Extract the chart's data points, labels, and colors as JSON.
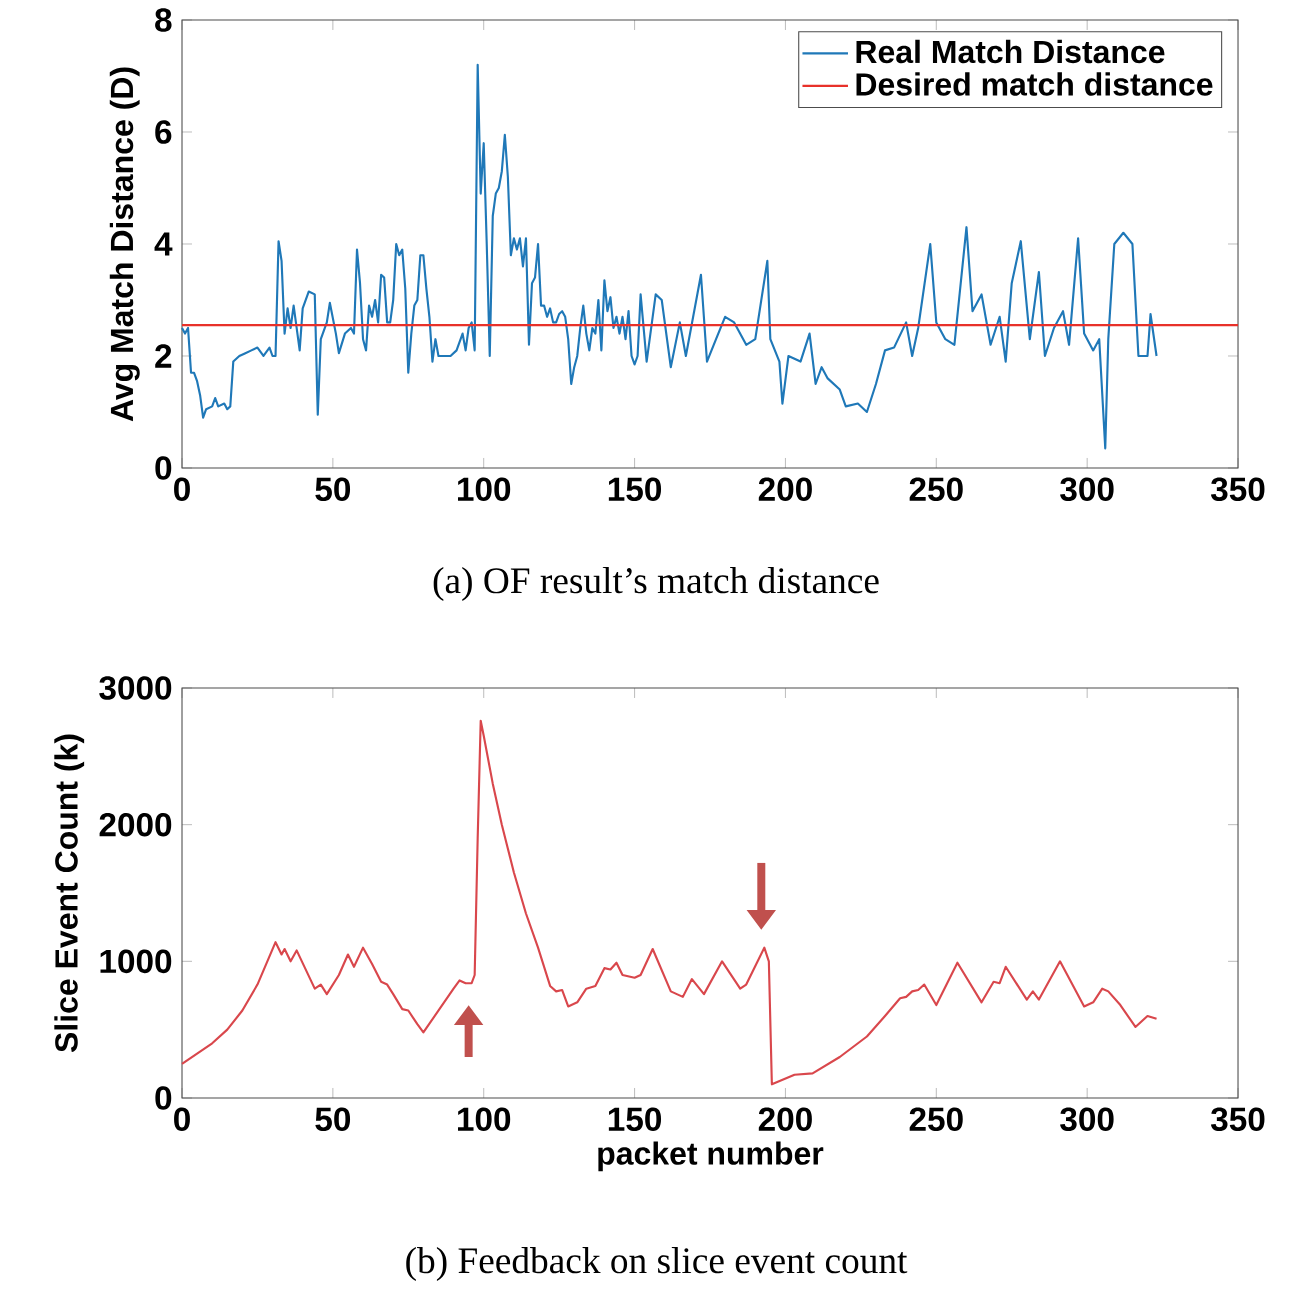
{
  "chart_data": [
    {
      "type": "line",
      "ylabel": "Avg Match Distance (D)",
      "xlim": [
        0,
        350
      ],
      "xticks": [
        0,
        50,
        100,
        150,
        200,
        250,
        300,
        350
      ],
      "ylim": [
        0,
        8
      ],
      "yticks": [
        0,
        2,
        4,
        6,
        8
      ],
      "legend": "top right",
      "annotations": [
        "(a) OF result’s match distance"
      ],
      "series": [
        {
          "name": "Real Match Distance",
          "color": "#1f78b8",
          "x": [
            0,
            1,
            2,
            3,
            4,
            5,
            6,
            7,
            8,
            10,
            11,
            12,
            14,
            15,
            16,
            17,
            19,
            21,
            23,
            25,
            27,
            29,
            30,
            31,
            32,
            33,
            34,
            35,
            36,
            37,
            39,
            40,
            42,
            44,
            45,
            46,
            48,
            49,
            51,
            52,
            54,
            56,
            57,
            58,
            59,
            60,
            61,
            62,
            63,
            64,
            65,
            66,
            67,
            68,
            69,
            70,
            71,
            72,
            73,
            74,
            75,
            76,
            77,
            78,
            79,
            80,
            81,
            82,
            83,
            84,
            85,
            87,
            89,
            91,
            93,
            94,
            95,
            96,
            97,
            98,
            99,
            100,
            101,
            102,
            103,
            104,
            105,
            106,
            107,
            108,
            109,
            110,
            111,
            112,
            113,
            114,
            115,
            116,
            117,
            118,
            119,
            120,
            121,
            122,
            123,
            124,
            125,
            126,
            127,
            128,
            129,
            130,
            131,
            132,
            133,
            134,
            135,
            136,
            137,
            138,
            139,
            140,
            141,
            142,
            143,
            144,
            145,
            146,
            147,
            148,
            149,
            150,
            151,
            152,
            154,
            157,
            159,
            162,
            165,
            167,
            172,
            174,
            177,
            180,
            183,
            187,
            190,
            194,
            195,
            198,
            199,
            201,
            205,
            208,
            210,
            212,
            214,
            218,
            220,
            224,
            227,
            230,
            233,
            236,
            240,
            242,
            244,
            248,
            250,
            253,
            256,
            260,
            262,
            265,
            268,
            271,
            273,
            275,
            278,
            281,
            284,
            286,
            289,
            292,
            294,
            297,
            299,
            302,
            304,
            306,
            307,
            309,
            312,
            315,
            317,
            320,
            321,
            323
          ],
          "values": [
            2.5,
            2.4,
            2.5,
            1.7,
            1.7,
            1.55,
            1.3,
            0.9,
            1.05,
            1.1,
            1.25,
            1.1,
            1.15,
            1.05,
            1.1,
            1.9,
            2.0,
            2.05,
            2.1,
            2.15,
            2.0,
            2.15,
            2.0,
            2.0,
            4.05,
            3.7,
            2.4,
            2.85,
            2.5,
            2.9,
            2.1,
            2.85,
            3.15,
            3.1,
            0.95,
            2.3,
            2.6,
            2.95,
            2.4,
            2.05,
            2.4,
            2.5,
            2.4,
            3.9,
            3.3,
            2.3,
            2.1,
            2.9,
            2.7,
            3.0,
            2.6,
            3.45,
            3.4,
            2.6,
            2.6,
            3.0,
            4.0,
            3.8,
            3.9,
            3.2,
            1.7,
            2.4,
            2.9,
            3.0,
            3.8,
            3.8,
            3.2,
            2.7,
            1.9,
            2.3,
            2.0,
            2.0,
            2.0,
            2.1,
            2.4,
            2.1,
            2.5,
            2.6,
            2.1,
            7.2,
            4.9,
            5.8,
            4.0,
            2.0,
            4.5,
            4.9,
            5.0,
            5.3,
            5.95,
            5.2,
            3.8,
            4.1,
            3.9,
            4.1,
            3.6,
            4.1,
            2.2,
            3.3,
            3.4,
            4.0,
            2.9,
            2.9,
            2.7,
            2.85,
            2.6,
            2.6,
            2.75,
            2.8,
            2.7,
            2.3,
            1.5,
            1.8,
            2.0,
            2.5,
            2.9,
            2.4,
            2.1,
            2.5,
            2.4,
            3.0,
            2.1,
            3.35,
            2.8,
            3.05,
            2.5,
            2.7,
            2.4,
            2.7,
            2.3,
            2.8,
            2.0,
            1.85,
            2.0,
            3.1,
            1.9,
            3.1,
            3.0,
            1.8,
            2.6,
            2.0,
            3.45,
            1.9,
            2.3,
            2.7,
            2.6,
            2.2,
            2.3,
            3.7,
            2.3,
            1.9,
            1.15,
            2.0,
            1.9,
            2.4,
            1.5,
            1.8,
            1.6,
            1.4,
            1.1,
            1.15,
            1.0,
            1.5,
            2.1,
            2.15,
            2.6,
            2.0,
            2.5,
            4.0,
            2.6,
            2.3,
            2.2,
            4.3,
            2.8,
            3.1,
            2.2,
            2.7,
            1.9,
            3.3,
            4.05,
            2.3,
            3.5,
            2.0,
            2.5,
            2.8,
            2.2,
            4.1,
            2.4,
            2.1,
            2.3,
            0.35,
            2.3,
            4.0,
            4.2,
            4.0,
            2.0,
            2.0,
            2.75,
            2.0
          ]
        },
        {
          "name": "Desired match distance",
          "color": "#e8312a",
          "x": [
            0,
            350
          ],
          "values": [
            2.55,
            2.55
          ]
        }
      ]
    },
    {
      "type": "line",
      "xlabel": "packet number",
      "ylabel": "Slice Event Count (k)",
      "xlim": [
        0,
        350
      ],
      "xticks": [
        0,
        50,
        100,
        150,
        200,
        250,
        300,
        350
      ],
      "ylim": [
        0,
        3000
      ],
      "yticks": [
        0,
        1000,
        2000,
        3000
      ],
      "annotations": [
        "(b) Feedback on slice event count"
      ],
      "series": [
        {
          "color": "#d9474c",
          "x": [
            0,
            10,
            15,
            20,
            25,
            31,
            33,
            34,
            36,
            38,
            41,
            44,
            46,
            48,
            52,
            55,
            57,
            60,
            63,
            66,
            68,
            70,
            73,
            75,
            78,
            80,
            85,
            90,
            92,
            94,
            96,
            97,
            98,
            99,
            100,
            103,
            106,
            110,
            114,
            118,
            122,
            124,
            126,
            128,
            131,
            134,
            137,
            140,
            142,
            144,
            146,
            150,
            152,
            156,
            162,
            166,
            169,
            173,
            179,
            185,
            187,
            193,
            194.5,
            195.5,
            203,
            209,
            218,
            227,
            233,
            238,
            240,
            242,
            244,
            246,
            250,
            257,
            265,
            269,
            271,
            273,
            280,
            282,
            284,
            291,
            299,
            302,
            305,
            307,
            311,
            316,
            320,
            323
          ],
          "values": [
            250,
            400,
            500,
            640,
            830,
            1140,
            1050,
            1090,
            1000,
            1080,
            940,
            800,
            830,
            760,
            900,
            1050,
            960,
            1100,
            980,
            850,
            830,
            760,
            650,
            640,
            540,
            480,
            640,
            800,
            860,
            840,
            840,
            900,
            1900,
            2760,
            2650,
            2300,
            2000,
            1650,
            1350,
            1100,
            820,
            780,
            790,
            670,
            700,
            800,
            820,
            950,
            940,
            990,
            900,
            880,
            900,
            1090,
            780,
            740,
            870,
            760,
            1000,
            800,
            830,
            1100,
            1000,
            100,
            170,
            180,
            300,
            450,
            600,
            730,
            740,
            780,
            790,
            830,
            680,
            990,
            700,
            850,
            840,
            960,
            720,
            780,
            720,
            1000,
            670,
            700,
            800,
            780,
            680,
            520,
            600,
            580
          ]
        }
      ]
    }
  ]
}
